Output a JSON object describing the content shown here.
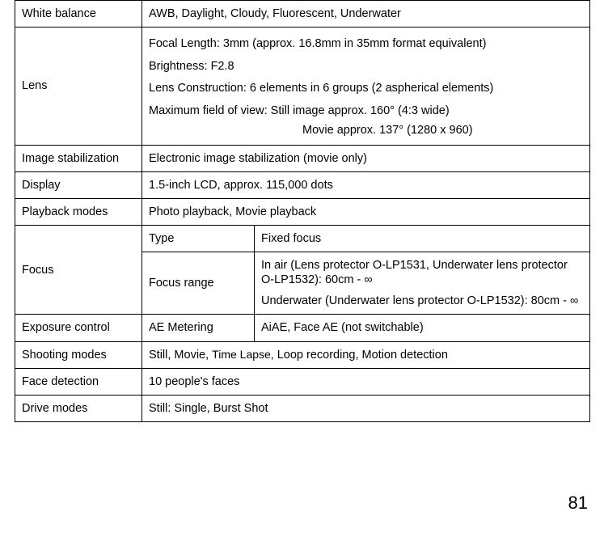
{
  "rows": {
    "white_balance": {
      "label": "White balance",
      "value": "AWB, Daylight, Cloudy, Fluorescent, Underwater"
    },
    "lens": {
      "label": "Lens",
      "l1": "Focal Length: 3mm (approx. 16.8mm in 35mm format equivalent)",
      "l2": "Brightness: F2.8",
      "l3": "Lens Construction: 6 elements in 6 groups (2 aspherical elements)",
      "l4": "Maximum field of view: Still image  approx. 160° (4:3 wide)",
      "l5": "Movie approx. 137° (1280 x 960)"
    },
    "image_stabilization": {
      "label": "Image stabilization",
      "value": "Electronic image stabilization (movie only)"
    },
    "display": {
      "label": "Display",
      "value": "1.5-inch LCD, approx. 115,000 dots"
    },
    "playback_modes": {
      "label": "Playback modes",
      "value": "Photo playback, Movie playback"
    },
    "focus": {
      "label": "Focus",
      "type_label": "Type",
      "type_value": "Fixed focus",
      "range_label": "Focus range",
      "range_p1": "In air (Lens protector O-LP1531, Underwater lens protector O-LP1532): 60cm - ∞",
      "range_p2": "Underwater (Underwater lens protector O-LP1532): 80cm - ∞"
    },
    "exposure_control": {
      "label": "Exposure control",
      "sub": "AE Metering",
      "value": "AiAE, Face AE (not switchable)"
    },
    "shooting_modes": {
      "label": "Shooting modes",
      "pre": "Still, Movie, ",
      "tl": "Time Lapse,",
      "post": " Loop recording, Motion detection"
    },
    "face_detection": {
      "label": "Face detection",
      "value": "10 people's faces"
    },
    "drive_modes": {
      "label": "Drive modes",
      "value": "Still: Single, Burst Shot"
    }
  },
  "page_number": "81",
  "style": {
    "border_color": "#000000",
    "bg": "#ffffff",
    "text_color": "#000000",
    "font_size_body": 14.5,
    "font_size_pagenum": 22
  }
}
